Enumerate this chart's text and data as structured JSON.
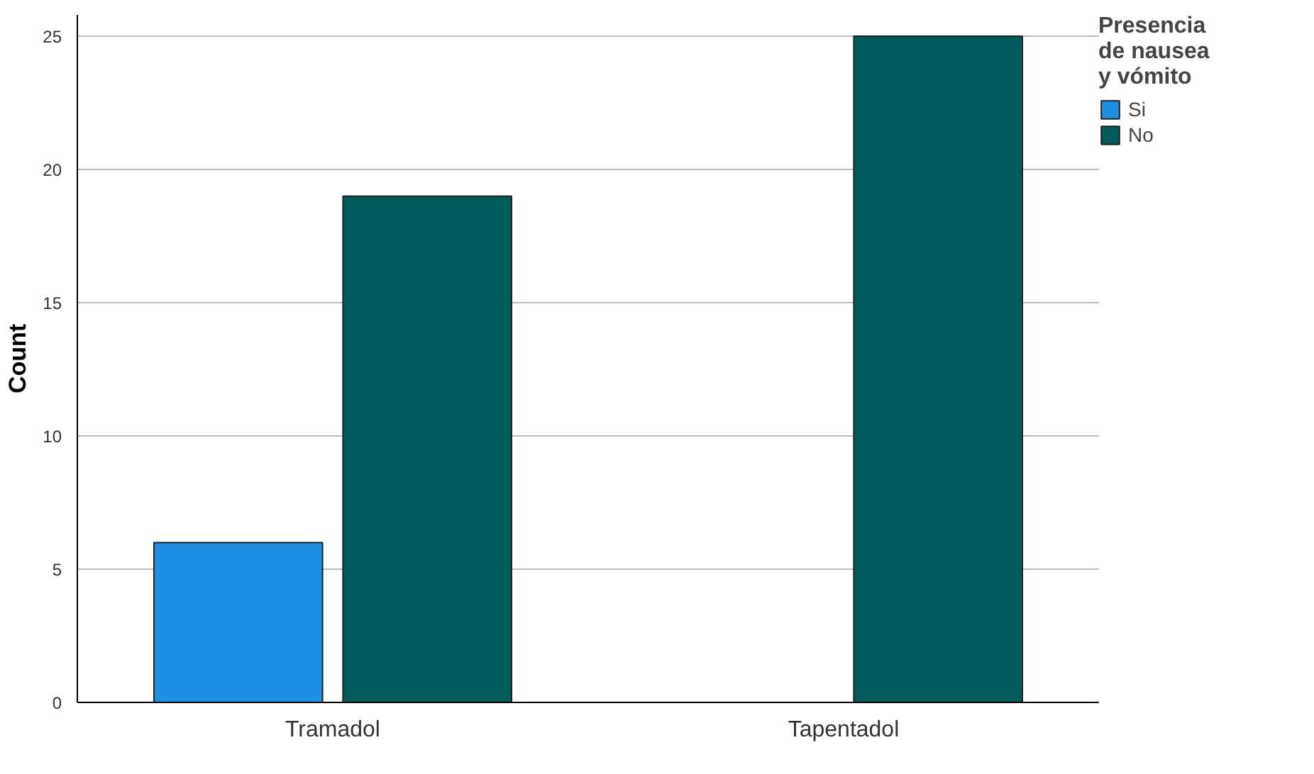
{
  "chart_data": {
    "type": "bar",
    "ylabel": "Count",
    "legend_title": "Presencia\nde nausea\ny vómito",
    "categories": [
      "Tramadol",
      "Tapentadol"
    ],
    "series": [
      {
        "name": "Si",
        "color": "#1f8fe3",
        "values": [
          6,
          null
        ]
      },
      {
        "name": "No",
        "color": "#005b5b",
        "values": [
          19,
          25
        ]
      }
    ],
    "ylim": [
      0,
      25.8
    ],
    "yticks": [
      0,
      5,
      10,
      15,
      20,
      25
    ],
    "grid": "y",
    "legend": "top right"
  }
}
